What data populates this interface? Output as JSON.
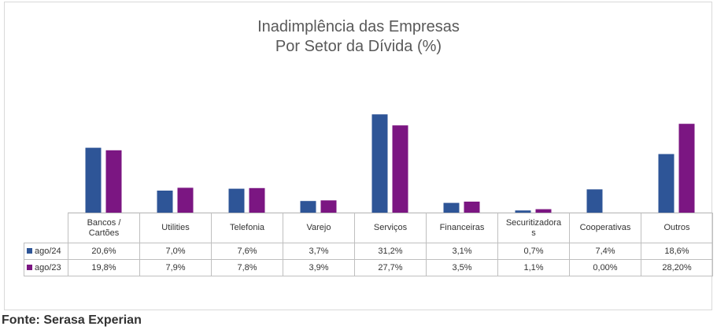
{
  "chart_data": {
    "type": "bar",
    "title_lines": [
      "Inadimplência das Empresas",
      "Por Setor da Dívida (%)"
    ],
    "categories": [
      "Bancos /\nCartões",
      "Utilities",
      "Telefonia",
      "Varejo",
      "Serviços",
      "Financeiras",
      "Securitizadora\ns",
      "Cooperativas",
      "Outros"
    ],
    "series": [
      {
        "name": "ago/24",
        "color": "#2e5597",
        "values": [
          20.6,
          7.0,
          7.6,
          3.7,
          31.2,
          3.1,
          0.7,
          7.4,
          18.6
        ],
        "labels": [
          "20,6%",
          "7,0%",
          "7,6%",
          "3,7%",
          "31,2%",
          "3,1%",
          "0,7%",
          "7,4%",
          "18,6%"
        ]
      },
      {
        "name": "ago/23",
        "color": "#7b1682",
        "values": [
          19.8,
          7.9,
          7.8,
          3.9,
          27.7,
          3.5,
          1.1,
          0.0,
          28.2
        ],
        "labels": [
          "19,8%",
          "7,9%",
          "7,8%",
          "3,9%",
          "27,7%",
          "3,5%",
          "1,1%",
          "0,00%",
          "28,20%"
        ]
      }
    ],
    "ylim": [
      0,
      38
    ],
    "grid": false,
    "legend": "data-table"
  },
  "source": "Fonte: Serasa Experian"
}
